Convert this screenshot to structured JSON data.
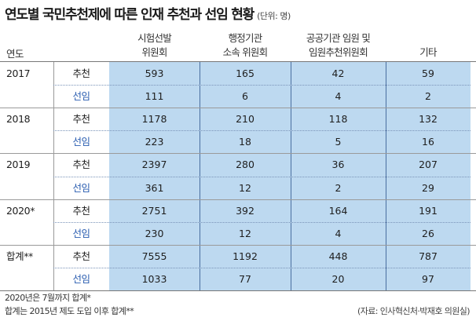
{
  "title": "연도별 국민추천제에 따른 인재 추천과 선임 현황",
  "unit": "(단위: 명)",
  "year_header": "연도",
  "columns": [
    "시험선발\n위원회",
    "행정기관\n소속 위원회",
    "공공기관 임원 및\n임원추천위원회",
    "기타"
  ],
  "rows": [
    {
      "year": "2017",
      "rec_label": "추천",
      "sel_label": "선임",
      "rec": [
        "593",
        "165",
        "42",
        "59"
      ],
      "sel": [
        "111",
        "6",
        "4",
        "2"
      ]
    },
    {
      "year": "2018",
      "rec_label": "추천",
      "sel_label": "선임",
      "rec": [
        "1178",
        "210",
        "118",
        "132"
      ],
      "sel": [
        "223",
        "18",
        "5",
        "16"
      ]
    },
    {
      "year": "2019",
      "rec_label": "추천",
      "sel_label": "선임",
      "rec": [
        "2397",
        "280",
        "36",
        "207"
      ],
      "sel": [
        "361",
        "12",
        "2",
        "29"
      ]
    },
    {
      "year": "2020*",
      "rec_label": "추천",
      "sel_label": "선임",
      "rec": [
        "2751",
        "392",
        "164",
        "191"
      ],
      "sel": [
        "230",
        "12",
        "4",
        "26"
      ]
    },
    {
      "year": "합계**",
      "rec_label": "추천",
      "sel_label": "선임",
      "rec": [
        "7555",
        "1192",
        "448",
        "787"
      ],
      "sel": [
        "1033",
        "77",
        "20",
        "97"
      ]
    }
  ],
  "footnotes": [
    "2020년은 7월까지 합계*",
    "합계는 2015년 제도 도입 이후 합계**"
  ],
  "source": "(자료: 인사혁신처·박재호 의원실)",
  "colors": {
    "shade": "#bdd9f0",
    "elected_text": "#2a5db0"
  }
}
